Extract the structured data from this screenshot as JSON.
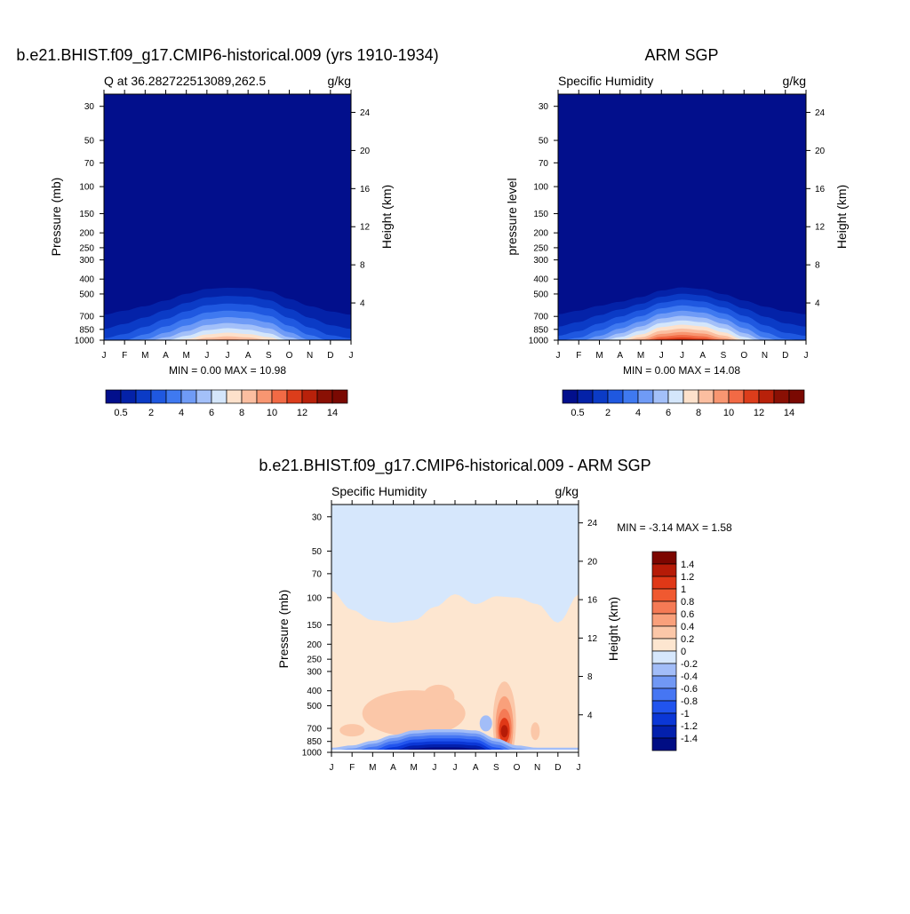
{
  "colors": {
    "scale14": [
      "#020f8c",
      "#0422a8",
      "#0b3bc6",
      "#1f58e0",
      "#3f79f0",
      "#6f9bf6",
      "#a3c0f9",
      "#d4e6fb",
      "#fde1cb",
      "#fbbea0",
      "#f89671",
      "#f26a45",
      "#dc3d1b",
      "#b8210a",
      "#8a1004"
    ],
    "diff": [
      "#000d84",
      "#0320ad",
      "#0b37d6",
      "#2154ee",
      "#4676f3",
      "#7198f4",
      "#a2bdf8",
      "#d6e7fc",
      "#fde6d0",
      "#fbc7a8",
      "#f9a07b",
      "#f57a55",
      "#f05930",
      "#e03817",
      "#b61b07",
      "#7c0600"
    ]
  },
  "panels": [
    {
      "title": "b.e21.BHIST.f09_g17.CMIP6-historical.009 (yrs 1910-1934)",
      "left_string": "Q at 36.282722513089,262.5",
      "right_string": "g/kg",
      "ylabel": "Pressure (mb)",
      "ylabel_right": "Height (km)",
      "minmax": "MIN =   0.00 MAX =   10.98"
    },
    {
      "title": "ARM SGP",
      "left_string": "Specific Humidity",
      "right_string": "g/kg",
      "ylabel": "pressure level",
      "ylabel_right": "Height (km)",
      "minmax": "MIN =   0.00 MAX =   14.08"
    },
    {
      "title": "b.e21.BHIST.f09_g17.CMIP6-historical.009 - ARM SGP",
      "left_string": "Specific Humidity",
      "right_string": "g/kg",
      "ylabel": "Pressure (mb)",
      "ylabel_right": "Height (km)",
      "minmax": "MIN =  -3.14 MAX =   1.58"
    }
  ],
  "chart_data": [
    {
      "type": "heatmap",
      "x": [
        "J",
        "F",
        "M",
        "A",
        "M",
        "J",
        "J",
        "A",
        "S",
        "O",
        "N",
        "D",
        "J"
      ],
      "y_ticks": [
        30,
        50,
        70,
        100,
        150,
        200,
        250,
        300,
        400,
        500,
        700,
        850,
        1000
      ],
      "y_right_ticks": [
        24,
        20,
        16,
        12,
        8,
        4
      ],
      "ylim": [
        1000,
        25
      ],
      "zmin": 0.0,
      "zmax": 10.98,
      "colorbar_labels": [
        "0.5",
        "2",
        "4",
        "6",
        "8",
        "10",
        "12",
        "14"
      ],
      "moist_top_hPa": [
        520,
        505,
        495,
        470,
        430,
        405,
        400,
        400,
        415,
        455,
        490,
        505,
        520
      ],
      "surface_q": [
        3.5,
        4.2,
        5.5,
        7.2,
        8.8,
        10.4,
        10.98,
        10.5,
        9.5,
        7.2,
        5.3,
        4.0,
        3.5
      ]
    },
    {
      "type": "heatmap",
      "x": [
        "J",
        "F",
        "M",
        "A",
        "M",
        "J",
        "J",
        "A",
        "S",
        "O",
        "N",
        "D",
        "J"
      ],
      "y_ticks": [
        30,
        50,
        70,
        100,
        150,
        200,
        250,
        300,
        400,
        500,
        700,
        850,
        1000
      ],
      "y_right_ticks": [
        24,
        20,
        16,
        12,
        8,
        4
      ],
      "ylim": [
        1000,
        25
      ],
      "zmin": 0.0,
      "zmax": 14.08,
      "colorbar_labels": [
        "0.5",
        "2",
        "4",
        "6",
        "8",
        "10",
        "12",
        "14"
      ],
      "moist_top_hPa": [
        540,
        525,
        510,
        495,
        470,
        430,
        410,
        420,
        450,
        485,
        510,
        525,
        540
      ],
      "surface_q": [
        4.0,
        4.8,
        6.5,
        8.6,
        10.8,
        13.4,
        14.08,
        13.5,
        11.5,
        8.6,
        6.0,
        4.5,
        4.0
      ]
    },
    {
      "type": "heatmap",
      "x": [
        "J",
        "F",
        "M",
        "A",
        "M",
        "J",
        "J",
        "A",
        "S",
        "O",
        "N",
        "D",
        "J"
      ],
      "y_ticks": [
        30,
        50,
        70,
        100,
        150,
        200,
        250,
        300,
        400,
        500,
        700,
        850,
        1000
      ],
      "y_right_ticks": [
        24,
        20,
        16,
        12,
        8,
        4
      ],
      "ylim": [
        1000,
        25
      ],
      "zmin": -3.14,
      "zmax": 1.58,
      "colorbar_labels": [
        "1.4",
        "1.2",
        "1",
        "0.8",
        "0.6",
        "0.4",
        "0.2",
        "0",
        "-0.2",
        "-0.4",
        "-0.6",
        "-0.8",
        "-1",
        "-1.2",
        "-1.4"
      ],
      "boundary_hPa": [
        90,
        120,
        140,
        145,
        140,
        115,
        95,
        110,
        98,
        100,
        110,
        145,
        95
      ]
    }
  ]
}
